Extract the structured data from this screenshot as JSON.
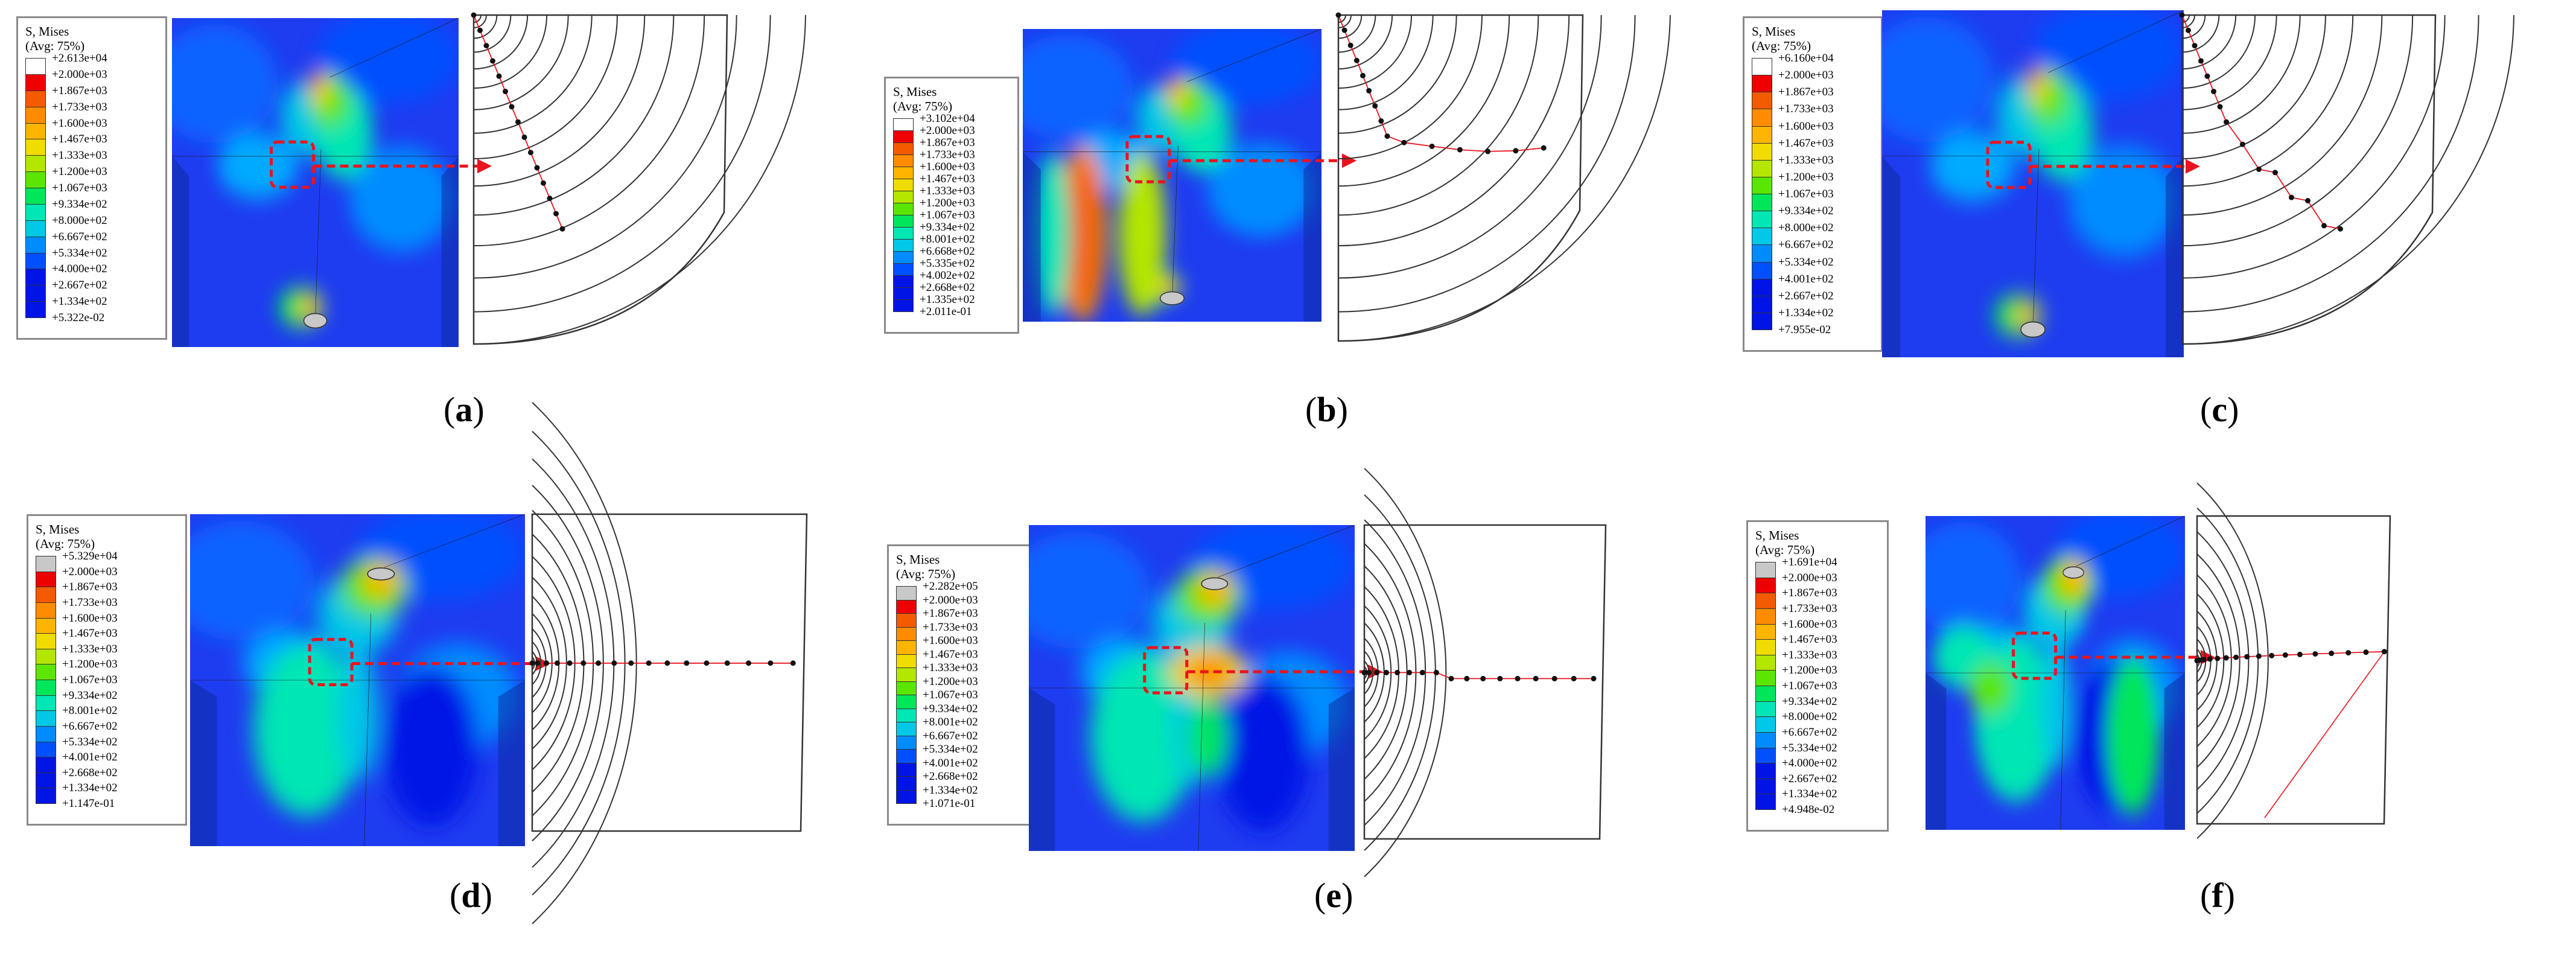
{
  "legend_title": "S, Mises",
  "legend_avg": "(Avg: 75%)",
  "legend_colors": [
    "#ffffff",
    "#ee0000",
    "#f45a00",
    "#ff8c00",
    "#ffb400",
    "#f0dc00",
    "#b4e600",
    "#5ae600",
    "#00e65a",
    "#00e6b4",
    "#00c8e6",
    "#008cff",
    "#0050ff",
    "#0014e6"
  ],
  "panels": [
    {
      "id": "a",
      "letter": "a",
      "max": "+2.613e+04",
      "min": "+5.322e-02",
      "top_swatch": "#ffffff",
      "crack_style": "inclined-long",
      "ticks": [
        "+2.000e+03",
        "+1.867e+03",
        "+1.733e+03",
        "+1.600e+03",
        "+1.467e+03",
        "+1.333e+03",
        "+1.200e+03",
        "+1.067e+03",
        "+9.334e+02",
        "+8.000e+02",
        "+6.667e+02",
        "+5.334e+02",
        "+4.000e+02",
        "+2.667e+02",
        "+1.334e+02"
      ]
    },
    {
      "id": "b",
      "letter": "b",
      "max": "+3.102e+04",
      "min": "+2.011e-01",
      "top_swatch": "#ffffff",
      "crack_style": "inclined-kinked",
      "ticks": [
        "+2.000e+03",
        "+1.867e+03",
        "+1.733e+03",
        "+1.600e+03",
        "+1.467e+03",
        "+1.333e+03",
        "+1.200e+03",
        "+1.067e+03",
        "+9.334e+02",
        "+8.001e+02",
        "+6.668e+02",
        "+5.335e+02",
        "+4.002e+02",
        "+2.668e+02",
        "+1.335e+02"
      ]
    },
    {
      "id": "c",
      "letter": "c",
      "max": "+6.160e+04",
      "min": "+7.955e-02",
      "top_swatch": "#ffffff",
      "crack_style": "inclined-zigzag",
      "ticks": [
        "+2.000e+03",
        "+1.867e+03",
        "+1.733e+03",
        "+1.600e+03",
        "+1.467e+03",
        "+1.333e+03",
        "+1.200e+03",
        "+1.067e+03",
        "+9.334e+02",
        "+8.000e+02",
        "+6.667e+02",
        "+5.334e+02",
        "+4.001e+02",
        "+2.667e+02",
        "+1.334e+02"
      ]
    },
    {
      "id": "d",
      "letter": "d",
      "max": "+5.329e+04",
      "min": "+1.147e-01",
      "top_swatch": "#c8c8c8",
      "crack_style": "horizontal",
      "ticks": [
        "+2.000e+03",
        "+1.867e+03",
        "+1.733e+03",
        "+1.600e+03",
        "+1.467e+03",
        "+1.333e+03",
        "+1.200e+03",
        "+1.067e+03",
        "+9.334e+02",
        "+8.001e+02",
        "+6.667e+02",
        "+5.334e+02",
        "+4.001e+02",
        "+2.668e+02",
        "+1.334e+02"
      ]
    },
    {
      "id": "e",
      "letter": "e",
      "max": "+2.282e+05",
      "min": "+1.071e-01",
      "top_swatch": "#c8c8c8",
      "crack_style": "horizontal-step",
      "ticks": [
        "+2.000e+03",
        "+1.867e+03",
        "+1.733e+03",
        "+1.600e+03",
        "+1.467e+03",
        "+1.333e+03",
        "+1.200e+03",
        "+1.067e+03",
        "+9.334e+02",
        "+8.001e+02",
        "+6.667e+02",
        "+5.334e+02",
        "+4.001e+02",
        "+2.668e+02",
        "+1.334e+02"
      ]
    },
    {
      "id": "f",
      "letter": "f",
      "max": "+1.691e+04",
      "min": "+4.948e-02",
      "top_swatch": "#c8c8c8",
      "crack_style": "horizontal-branch",
      "ticks": [
        "+2.000e+03",
        "+1.867e+03",
        "+1.733e+03",
        "+1.600e+03",
        "+1.467e+03",
        "+1.333e+03",
        "+1.200e+03",
        "+1.067e+03",
        "+9.334e+02",
        "+8.000e+02",
        "+6.667e+02",
        "+5.334e+02",
        "+4.000e+02",
        "+2.667e+02",
        "+1.334e+02"
      ]
    }
  ]
}
